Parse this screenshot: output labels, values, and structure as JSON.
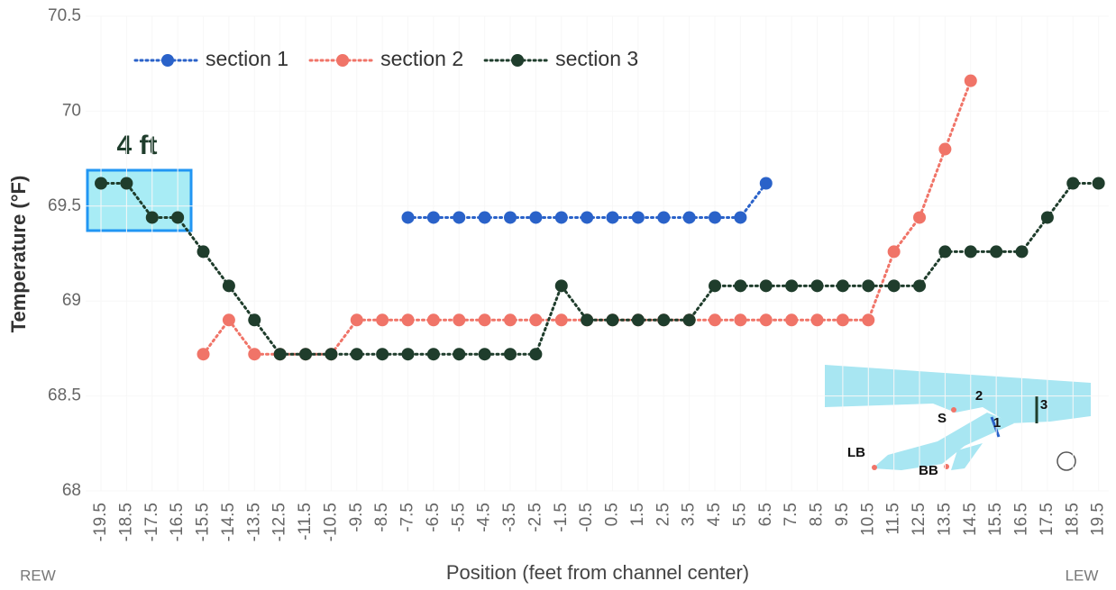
{
  "chart_data": {
    "type": "line",
    "y_label": "Temperature (°F)",
    "x_label": "Position (feet from channel center)",
    "left_label": "REW",
    "right_label": "LEW",
    "highlight_label": "4 ft",
    "inset_labels": [
      "2",
      "3",
      "1",
      "S",
      "LB",
      "BB"
    ],
    "xlim": [
      -20.1,
      19.9
    ],
    "ylim": [
      68,
      70.5
    ],
    "yticks": [
      68,
      68.5,
      69,
      69.5,
      70,
      70.5
    ],
    "xticks": [
      -19.5,
      -18.5,
      -17.5,
      -16.5,
      -15.5,
      -14.5,
      -13.5,
      -12.5,
      -11.5,
      -10.5,
      -9.5,
      -8.5,
      -7.5,
      -6.5,
      -5.5,
      -4.5,
      -3.5,
      -2.5,
      -1.5,
      -0.5,
      0.5,
      1.5,
      2.5,
      3.5,
      4.5,
      5.5,
      6.5,
      7.5,
      8.5,
      9.5,
      10.5,
      11.5,
      12.5,
      13.5,
      14.5,
      15.5,
      16.5,
      17.5,
      18.5,
      19.5
    ],
    "series": [
      {
        "name": "section 1",
        "color": "#2a62c9",
        "x": [
          -7.5,
          -6.5,
          -5.5,
          -4.5,
          -3.5,
          -2.5,
          -1.5,
          -0.5,
          0.5,
          1.5,
          2.5,
          3.5,
          4.5,
          5.5,
          6.5
        ],
        "values": [
          69.44,
          69.44,
          69.44,
          69.44,
          69.44,
          69.44,
          69.44,
          69.44,
          69.44,
          69.44,
          69.44,
          69.44,
          69.44,
          69.44,
          69.62
        ]
      },
      {
        "name": "section 2",
        "color": "#f07468",
        "x": [
          -15.5,
          -14.5,
          -13.5,
          -12.5,
          -11.5,
          -10.5,
          -9.5,
          -8.5,
          -7.5,
          -6.5,
          -5.5,
          -4.5,
          -3.5,
          -2.5,
          -1.5,
          -0.5,
          0.5,
          1.5,
          2.5,
          3.5,
          4.5,
          5.5,
          6.5,
          7.5,
          8.5,
          9.5,
          10.5,
          11.5,
          12.5,
          13.5,
          14.5
        ],
        "values": [
          68.72,
          68.9,
          68.72,
          68.72,
          68.72,
          68.72,
          68.9,
          68.9,
          68.9,
          68.9,
          68.9,
          68.9,
          68.9,
          68.9,
          68.9,
          68.9,
          68.9,
          68.9,
          68.9,
          68.9,
          68.9,
          68.9,
          68.9,
          68.9,
          68.9,
          68.9,
          68.9,
          69.26,
          69.44,
          69.8,
          70.16
        ]
      },
      {
        "name": "section 3",
        "color": "#1f3d2c",
        "x": [
          -19.5,
          -18.5,
          -17.5,
          -16.5,
          -15.5,
          -14.5,
          -13.5,
          -12.5,
          -11.5,
          -10.5,
          -9.5,
          -8.5,
          -7.5,
          -6.5,
          -5.5,
          -4.5,
          -3.5,
          -2.5,
          -1.5,
          -0.5,
          0.5,
          1.5,
          2.5,
          3.5,
          4.5,
          5.5,
          6.5,
          7.5,
          8.5,
          9.5,
          10.5,
          11.5,
          12.5,
          13.5,
          14.5,
          15.5,
          16.5,
          17.5,
          18.5,
          19.5
        ],
        "values": [
          69.62,
          69.62,
          69.44,
          69.44,
          69.26,
          69.08,
          68.9,
          68.72,
          68.72,
          68.72,
          68.72,
          68.72,
          68.72,
          68.72,
          68.72,
          68.72,
          68.72,
          68.72,
          69.08,
          68.9,
          68.9,
          68.9,
          68.9,
          68.9,
          69.08,
          69.08,
          69.08,
          69.08,
          69.08,
          69.08,
          69.08,
          69.08,
          69.08,
          69.26,
          69.26,
          69.26,
          69.26,
          69.44,
          69.62,
          69.62
        ]
      }
    ]
  }
}
